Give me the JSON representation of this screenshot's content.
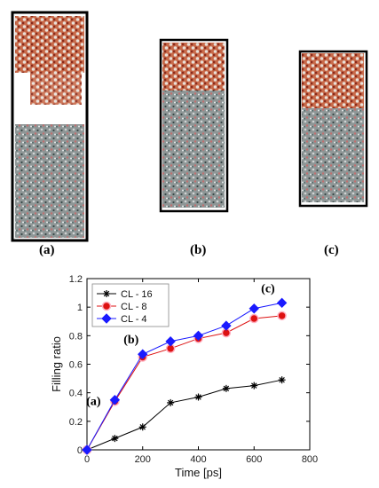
{
  "panel_labels": [
    "(a)",
    "(b)",
    "(c)"
  ],
  "chart_data": {
    "type": "line",
    "xlabel": "Time [ps]",
    "ylabel": "Filling ratio",
    "xlim": [
      0,
      800
    ],
    "ylim": [
      0,
      1.2
    ],
    "xticks": [
      0,
      200,
      400,
      600,
      800
    ],
    "yticks": [
      0,
      0.2,
      0.4,
      0.6,
      0.8,
      1,
      1.2
    ],
    "grid": false,
    "legend_position": "top-left",
    "series": [
      {
        "name": "CL - 16",
        "marker": "star",
        "color": "#000000",
        "x": [
          0,
          100,
          200,
          300,
          400,
          500,
          600,
          700
        ],
        "y": [
          0,
          0.08,
          0.16,
          0.33,
          0.37,
          0.43,
          0.45,
          0.49
        ]
      },
      {
        "name": "CL - 8",
        "marker": "circle",
        "color": "#dd1111",
        "x": [
          0,
          100,
          200,
          300,
          400,
          500,
          600,
          700
        ],
        "y": [
          0,
          0.34,
          0.65,
          0.71,
          0.78,
          0.82,
          0.92,
          0.94
        ]
      },
      {
        "name": "CL - 4",
        "marker": "diamond",
        "color": "#1a1aff",
        "x": [
          0,
          100,
          200,
          300,
          400,
          500,
          600,
          700
        ],
        "y": [
          0,
          0.35,
          0.67,
          0.76,
          0.8,
          0.87,
          0.99,
          1.03
        ]
      }
    ],
    "annotations": [
      {
        "text": "(a)",
        "x": 100,
        "y": 0.35
      },
      {
        "text": "(b)",
        "x": 200,
        "y": 0.67
      },
      {
        "text": "(c)",
        "x": 650,
        "y": 1.03
      }
    ]
  }
}
